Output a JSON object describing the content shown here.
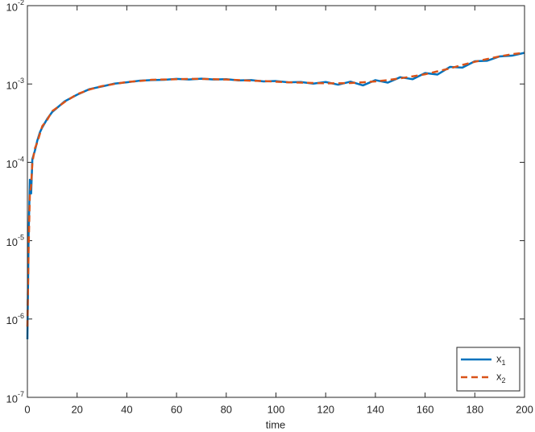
{
  "chart_data": {
    "type": "line",
    "xlabel": "time",
    "log_y": true,
    "legend": "lower right",
    "x": [
      0,
      0.5,
      1,
      1.5,
      2,
      3,
      4,
      5,
      6,
      8,
      10,
      15,
      20,
      25,
      30,
      35,
      40,
      45,
      50,
      55,
      60,
      65,
      70,
      75,
      80,
      85,
      90,
      95,
      100,
      105,
      110,
      115,
      120,
      125,
      130,
      135,
      140,
      145,
      150,
      155,
      160,
      165,
      170,
      175,
      180,
      185,
      190,
      195,
      200
    ],
    "series": [
      {
        "name": "x_1",
        "color": "#0072BD",
        "dash": false,
        "values": [
          5.5e-07,
          1.2e-05,
          6e-05,
          4e-05,
          0.00011,
          0.00014,
          0.00019,
          0.00024,
          0.00028,
          0.00036,
          0.00044,
          0.0006,
          0.00073,
          0.00086,
          0.00093,
          0.00101,
          0.00105,
          0.0011,
          0.00112,
          0.00113,
          0.00116,
          0.00114,
          0.00117,
          0.00114,
          0.00115,
          0.00111,
          0.00112,
          0.00108,
          0.00109,
          0.00105,
          0.00106,
          0.00101,
          0.00106,
          0.00098,
          0.00107,
          0.00096,
          0.00112,
          0.00104,
          0.00122,
          0.00115,
          0.00138,
          0.00132,
          0.00165,
          0.00162,
          0.00195,
          0.00198,
          0.00225,
          0.0023,
          0.0025
        ]
      },
      {
        "name": "x_2",
        "color": "#D95319",
        "dash": true,
        "values": [
          8e-07,
          8e-06,
          4e-05,
          5e-05,
          0.0001,
          0.00015,
          0.00018,
          0.00023,
          0.00029,
          0.00035,
          0.00045,
          0.00059,
          0.00074,
          0.00085,
          0.00094,
          0.001,
          0.00106,
          0.00109,
          0.00113,
          0.00114,
          0.00115,
          0.00116,
          0.00116,
          0.00115,
          0.00114,
          0.00112,
          0.0011,
          0.00109,
          0.00107,
          0.00105,
          0.00104,
          0.00103,
          0.00102,
          0.00102,
          0.00103,
          0.00105,
          0.00108,
          0.00112,
          0.00118,
          0.00125,
          0.00133,
          0.00145,
          0.00158,
          0.00175,
          0.00192,
          0.00208,
          0.00225,
          0.0024,
          0.0025
        ]
      }
    ],
    "xlim": [
      0,
      200
    ],
    "xticks": [
      0,
      20,
      40,
      60,
      80,
      100,
      120,
      140,
      160,
      180,
      200
    ],
    "ylim": [
      1e-07,
      0.01
    ],
    "yticks": [
      {
        "value": 1e-07,
        "label": "10^-7"
      },
      {
        "value": 1e-06,
        "label": "10^-6"
      },
      {
        "value": 1e-05,
        "label": "10^-5"
      },
      {
        "value": 0.0001,
        "label": "10^-4"
      },
      {
        "value": 0.001,
        "label": "10^-3"
      },
      {
        "value": 0.01,
        "label": "10^-2"
      }
    ]
  }
}
